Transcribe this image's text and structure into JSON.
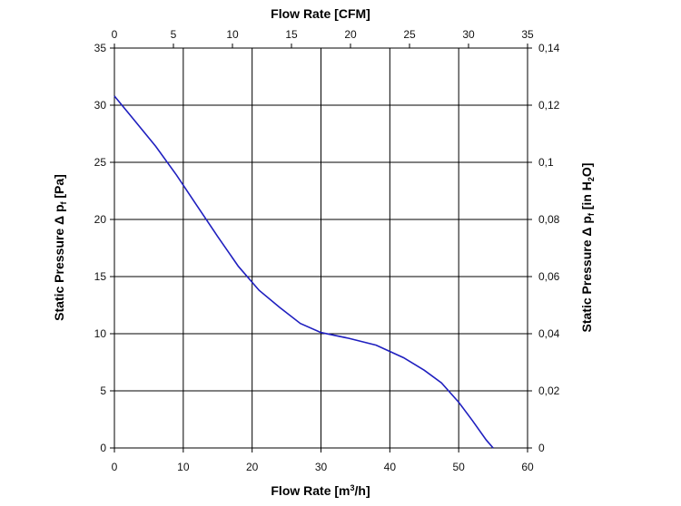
{
  "chart_data": {
    "type": "line",
    "title": "",
    "xlabel": "Flow Rate [m³/h]",
    "xlabel_main": "Flow Rate [m",
    "xlabel_sup": "3",
    "xlabel_tail": "/h]",
    "x2label": "Flow Rate [CFM]",
    "ylabel_left": "Static Pressure Δ pf [Pa]",
    "ylabel_left_main": "Static Pressure Δ p",
    "ylabel_left_sub": "f",
    "ylabel_left_tail": " [Pa]",
    "ylabel_right": "Static Pressure Δ pf [in H2O]",
    "ylabel_right_main": "Static Pressure Δ p",
    "ylabel_right_sub": "f",
    "ylabel_right_mid": " [in H",
    "ylabel_right_sub2": "2",
    "ylabel_right_tail": "O]",
    "xlim": [
      0,
      60
    ],
    "x2lim": [
      0,
      35
    ],
    "ylim_left": [
      0,
      35
    ],
    "ylim_right": [
      0,
      0.14
    ],
    "x_ticks": [
      "0",
      "10",
      "20",
      "30",
      "40",
      "50",
      "60"
    ],
    "x2_ticks": [
      "0",
      "5",
      "10",
      "15",
      "20",
      "25",
      "30",
      "35"
    ],
    "y_left_ticks": [
      "0",
      "5",
      "10",
      "15",
      "20",
      "25",
      "30",
      "35"
    ],
    "y_right_ticks": [
      "0",
      "0,02",
      "0,04",
      "0,06",
      "0,08",
      "0,1",
      "0,12",
      "0,14"
    ],
    "grid": true,
    "series_color": "#1f1fbf",
    "series": [
      {
        "x": [
          0,
          3,
          6,
          9,
          12,
          15,
          18,
          21,
          24,
          27,
          30,
          34,
          38,
          42,
          45,
          47.5,
          50,
          52,
          54,
          55
        ],
        "y": [
          30.8,
          28.6,
          26.4,
          23.9,
          21.2,
          18.5,
          15.9,
          13.8,
          12.3,
          10.9,
          10.1,
          9.6,
          9.0,
          7.9,
          6.8,
          5.7,
          4.0,
          2.4,
          0.7,
          0
        ]
      }
    ]
  }
}
